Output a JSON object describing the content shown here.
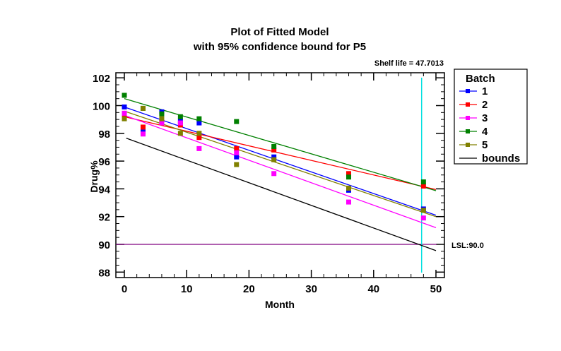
{
  "chart_data": {
    "type": "scatter",
    "title": "Plot of Fitted Model",
    "subtitle": "with 95% confidence bound for P5",
    "annotation_shelf_life": "Shelf life = 47.7013",
    "shelf_life": 47.7013,
    "xlabel": "Month",
    "ylabel": "Drug%",
    "xlim": [
      -1.3,
      51.5
    ],
    "ylim": [
      87.6,
      102.4
    ],
    "xticks": [
      0,
      10,
      20,
      30,
      40,
      50
    ],
    "yticks": [
      88,
      90,
      92,
      94,
      96,
      98,
      100,
      102
    ],
    "lsl": 90.0,
    "lsl_label": "LSL:90.0",
    "legend_title": "Batch",
    "legend_position": "right",
    "series": [
      {
        "name": "1",
        "color": "#0000ff",
        "x": [
          0,
          3,
          6,
          9,
          12,
          18,
          24,
          36,
          48
        ],
        "y": [
          99.9,
          98.1,
          99.55,
          98.9,
          98.75,
          96.3,
          96.3,
          93.9,
          92.55
        ],
        "fit": [
          99.9,
          92.1
        ]
      },
      {
        "name": "2",
        "color": "#ff0000",
        "x": [
          0,
          3,
          6,
          9,
          12,
          18,
          24,
          36,
          48
        ],
        "y": [
          99.2,
          98.45,
          98.8,
          98.6,
          97.7,
          96.9,
          96.8,
          95.1,
          94.2
        ],
        "fit": [
          99.2,
          93.95
        ]
      },
      {
        "name": "3",
        "color": "#ff00ff",
        "x": [
          0,
          3,
          6,
          9,
          12,
          18,
          24,
          36,
          48
        ],
        "y": [
          99.45,
          97.95,
          98.75,
          98.75,
          96.9,
          96.6,
          95.1,
          93.05,
          91.9
        ],
        "fit": [
          99.3,
          91.2
        ]
      },
      {
        "name": "4",
        "color": "#008000",
        "x": [
          0,
          3,
          6,
          9,
          12,
          18,
          24,
          36,
          48
        ],
        "y": [
          100.74,
          99.8,
          99.4,
          99.2,
          99.05,
          98.85,
          97.05,
          94.85,
          94.5
        ],
        "fit": [
          100.5,
          93.87
        ]
      },
      {
        "name": "5",
        "color": "#808000",
        "x": [
          0,
          3,
          6,
          9,
          12,
          18,
          24,
          36,
          48
        ],
        "y": [
          99.05,
          99.8,
          99.05,
          98.0,
          98.0,
          95.75,
          96.1,
          94.05,
          92.45
        ],
        "fit": [
          99.6,
          92.0
        ]
      },
      {
        "name": "bounds",
        "color": "#000000",
        "x": [],
        "y": [],
        "fit": [
          97.7,
          89.55
        ]
      }
    ],
    "fit_x": [
      0,
      50
    ],
    "bound_start_x": 0.3,
    "colors": {
      "shelf_line": "#00e0e0",
      "lsl_line": "#800080",
      "axis": "#000000"
    }
  }
}
